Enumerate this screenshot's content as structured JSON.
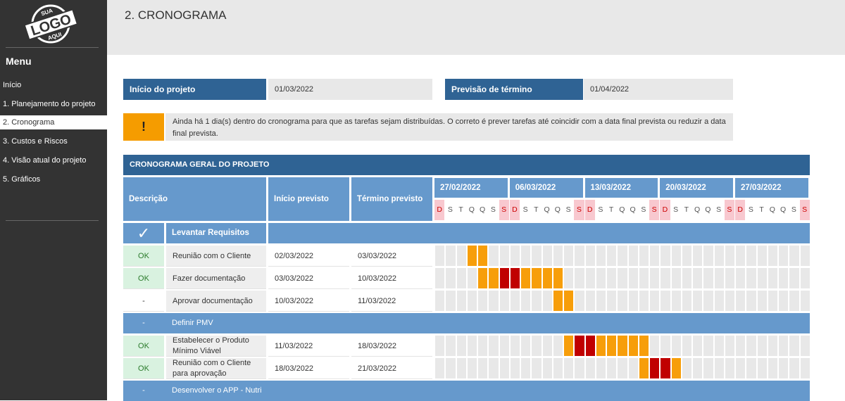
{
  "sidebar": {
    "logo_text": [
      "SUA",
      "LOGO",
      "AQUI"
    ],
    "menu_title": "Menu",
    "items": [
      {
        "label": "Início"
      },
      {
        "label": "1. Planejamento do projeto"
      },
      {
        "label": "2. Cronograma",
        "active": true
      },
      {
        "label": "3. Custos e Riscos"
      },
      {
        "label": "4. Visão atual do projeto"
      },
      {
        "label": "5. Gráficos"
      }
    ]
  },
  "page": {
    "title": "2. CRONOGRAMA"
  },
  "summary": {
    "start_label": "Início do projeto",
    "start_value": "01/03/2022",
    "end_label": "Previsão de término",
    "end_value": "01/04/2022"
  },
  "warning": {
    "icon": "!",
    "text": "Ainda há 1 dia(s) dentro do cronograma para que as tarefas sejam distribuídas. O correto é prever tarefas até coincidir com a data final prevista ou reduzir a data final prevista."
  },
  "table": {
    "title": "CRONOGRAMA GERAL DO PROJETO",
    "headers": {
      "description": "Descrição",
      "start": "Início previsto",
      "end": "Término previsto"
    },
    "weeks": [
      "27/02/2022",
      "06/03/2022",
      "13/03/2022",
      "20/03/2022",
      "27/03/2022"
    ],
    "day_letters": [
      "D",
      "S",
      "T",
      "Q",
      "Q",
      "S",
      "S"
    ],
    "colors": {
      "bar": "#f79e0a",
      "weekend_bar": "#c00000",
      "ok_bg": "#d9f2e0"
    },
    "rows": [
      {
        "type": "group",
        "status": "✓",
        "label": "Levantar Requisitos"
      },
      {
        "type": "task",
        "status": "OK",
        "label": "Reunião com o Cliente",
        "start": "02/03/2022",
        "end": "03/03/2022",
        "span": [
          3,
          4
        ]
      },
      {
        "type": "task",
        "status": "OK",
        "label": "Fazer documentação",
        "start": "03/03/2022",
        "end": "10/03/2022",
        "span": [
          4,
          11
        ]
      },
      {
        "type": "task",
        "status": "-",
        "label": "Aprovar documentação",
        "start": "10/03/2022",
        "end": "11/03/2022",
        "span": [
          11,
          12
        ]
      },
      {
        "type": "group",
        "status": "-",
        "label": "Definir PMV"
      },
      {
        "type": "task",
        "status": "OK",
        "label": "Estabelecer o Produto Mínimo Viável",
        "start": "11/03/2022",
        "end": "18/03/2022",
        "span": [
          12,
          19
        ]
      },
      {
        "type": "task",
        "status": "OK",
        "label": "Reunião com o Cliente para aprovação",
        "start": "18/03/2022",
        "end": "21/03/2022",
        "span": [
          19,
          22
        ]
      },
      {
        "type": "group",
        "status": "-",
        "label": "Desenvolver o APP - Nutri"
      }
    ]
  }
}
